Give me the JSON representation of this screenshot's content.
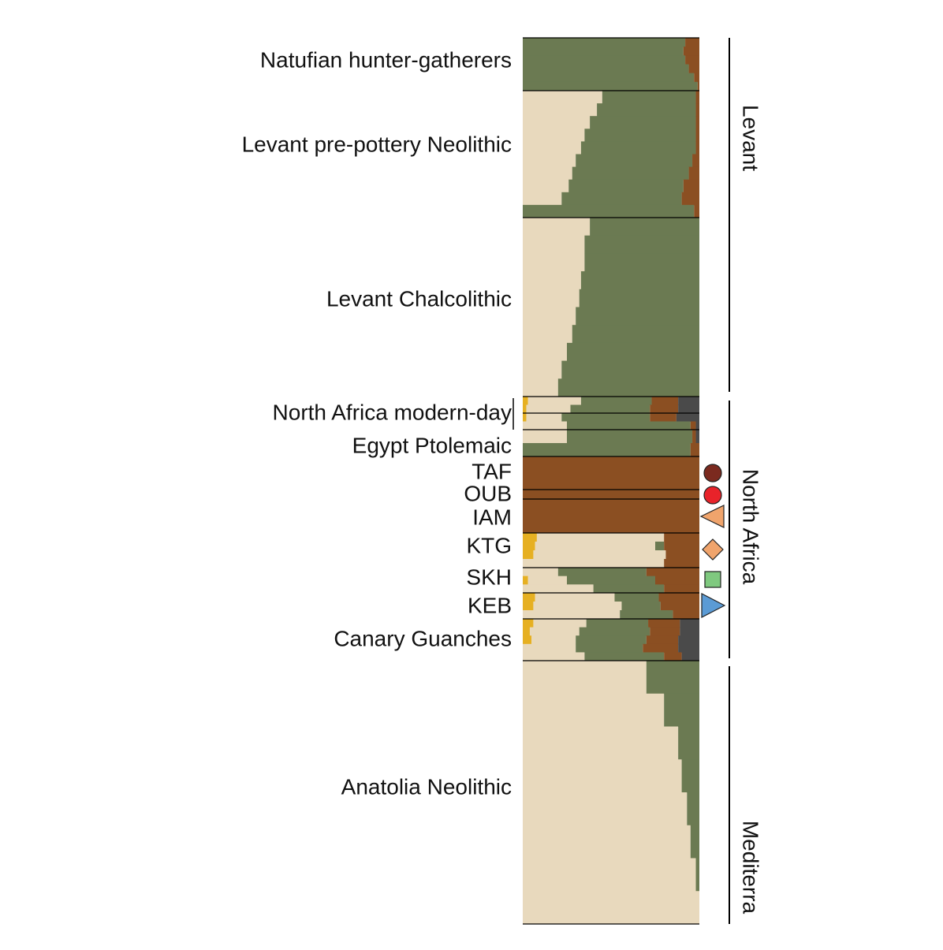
{
  "chart_data": {
    "type": "admixture",
    "components": [
      "#e6b022",
      "#e8d9bd",
      "#6b7a52",
      "#8b4f22",
      "#4a4a4a"
    ],
    "groups": [
      {
        "label": "Natufian hunter-gatherers",
        "rows": [
          [
            0,
            0,
            92,
            8,
            0
          ],
          [
            0,
            0,
            91,
            9,
            0
          ],
          [
            0,
            0,
            92,
            8,
            0
          ],
          [
            0,
            0,
            94,
            6,
            0
          ],
          [
            0,
            0,
            97,
            3,
            0
          ],
          [
            0,
            0,
            99,
            1,
            0
          ]
        ]
      },
      {
        "label": "Levant pre-pottery Neolithic",
        "rows": [
          [
            0,
            45,
            53,
            2,
            0
          ],
          [
            0,
            42,
            56,
            2,
            0
          ],
          [
            0,
            38,
            60,
            2,
            0
          ],
          [
            0,
            35,
            63,
            2,
            0
          ],
          [
            0,
            33,
            65,
            2,
            0
          ],
          [
            0,
            30,
            66,
            4,
            0
          ],
          [
            0,
            28,
            66,
            6,
            0
          ],
          [
            0,
            26,
            65,
            9,
            0
          ],
          [
            0,
            22,
            68,
            10,
            0
          ],
          [
            0,
            0,
            97,
            3,
            0
          ]
        ]
      },
      {
        "label": "Levant Chalcolithic",
        "rows": [
          [
            0,
            38,
            62,
            0,
            0
          ],
          [
            0,
            35,
            65,
            0,
            0
          ],
          [
            0,
            35,
            65,
            0,
            0
          ],
          [
            0,
            33,
            67,
            0,
            0
          ],
          [
            0,
            32,
            68,
            0,
            0
          ],
          [
            0,
            30,
            70,
            0,
            0
          ],
          [
            0,
            28,
            72,
            0,
            0
          ],
          [
            0,
            25,
            75,
            0,
            0
          ],
          [
            0,
            22,
            78,
            0,
            0
          ],
          [
            0,
            20,
            80,
            0,
            0
          ]
        ]
      },
      {
        "label": "North Africa modern-day",
        "rows": [
          [
            3,
            30,
            40,
            15,
            12
          ],
          [
            2,
            25,
            45,
            16,
            12
          ],
          [
            2,
            20,
            50,
            15,
            13
          ],
          [
            0,
            25,
            70,
            3,
            2
          ]
        ]
      },
      {
        "label": "Egypt Ptolemaic",
        "rows": [
          [
            0,
            25,
            71,
            2,
            2
          ],
          [
            0,
            0,
            95,
            5,
            0
          ]
        ]
      },
      {
        "label": "TAF",
        "rows": [
          [
            0,
            0,
            0,
            100,
            0
          ],
          [
            0,
            0,
            0,
            100,
            0
          ]
        ],
        "marker": {
          "shape": "circle",
          "color": "#7b2a1f"
        }
      },
      {
        "label": "OUB",
        "rows": [
          [
            0,
            0,
            0,
            100,
            0
          ]
        ],
        "marker": {
          "shape": "circle",
          "color": "#e8232a"
        }
      },
      {
        "label": "IAM",
        "rows": [
          [
            0,
            0,
            0,
            100,
            0
          ],
          [
            0,
            0,
            0,
            100,
            0
          ]
        ],
        "marker": {
          "shape": "triangle-left",
          "color": "#f0a46c"
        }
      },
      {
        "label": "KTG",
        "rows": [
          [
            8,
            72,
            0,
            20,
            0
          ],
          [
            7,
            68,
            5,
            20,
            0
          ],
          [
            6,
            75,
            0,
            19,
            0
          ],
          [
            0,
            80,
            0,
            20,
            0
          ]
        ],
        "marker": {
          "shape": "diamond",
          "color": "#f0a46c"
        }
      },
      {
        "label": "SKH",
        "rows": [
          [
            0,
            20,
            50,
            30,
            0
          ],
          [
            3,
            22,
            50,
            25,
            0
          ],
          [
            0,
            40,
            40,
            20,
            0
          ]
        ],
        "marker": {
          "shape": "square",
          "color": "#7fc97f"
        }
      },
      {
        "label": "KEB",
        "rows": [
          [
            7,
            45,
            25,
            23,
            0
          ],
          [
            6,
            50,
            22,
            22,
            0
          ],
          [
            0,
            55,
            30,
            15,
            0
          ]
        ],
        "marker": {
          "shape": "triangle-right",
          "color": "#5b9bd5"
        }
      },
      {
        "label": "Canary Guanches",
        "rows": [
          [
            6,
            30,
            35,
            18,
            11
          ],
          [
            4,
            28,
            40,
            17,
            11
          ],
          [
            5,
            25,
            40,
            18,
            12
          ],
          [
            0,
            30,
            38,
            20,
            12
          ],
          [
            0,
            35,
            45,
            10,
            10
          ]
        ]
      },
      {
        "label": "Anatolia Neolithic",
        "rows": [
          [
            0,
            70,
            30,
            0,
            0
          ],
          [
            0,
            80,
            20,
            0,
            0
          ],
          [
            0,
            88,
            12,
            0,
            0
          ],
          [
            0,
            90,
            10,
            0,
            0
          ],
          [
            0,
            93,
            7,
            0,
            0
          ],
          [
            0,
            95,
            5,
            0,
            0
          ],
          [
            0,
            98,
            2,
            0,
            0
          ],
          [
            0,
            100,
            0,
            0,
            0
          ]
        ]
      }
    ],
    "regions": [
      "Levant",
      "North Africa",
      "Mediterra"
    ]
  }
}
